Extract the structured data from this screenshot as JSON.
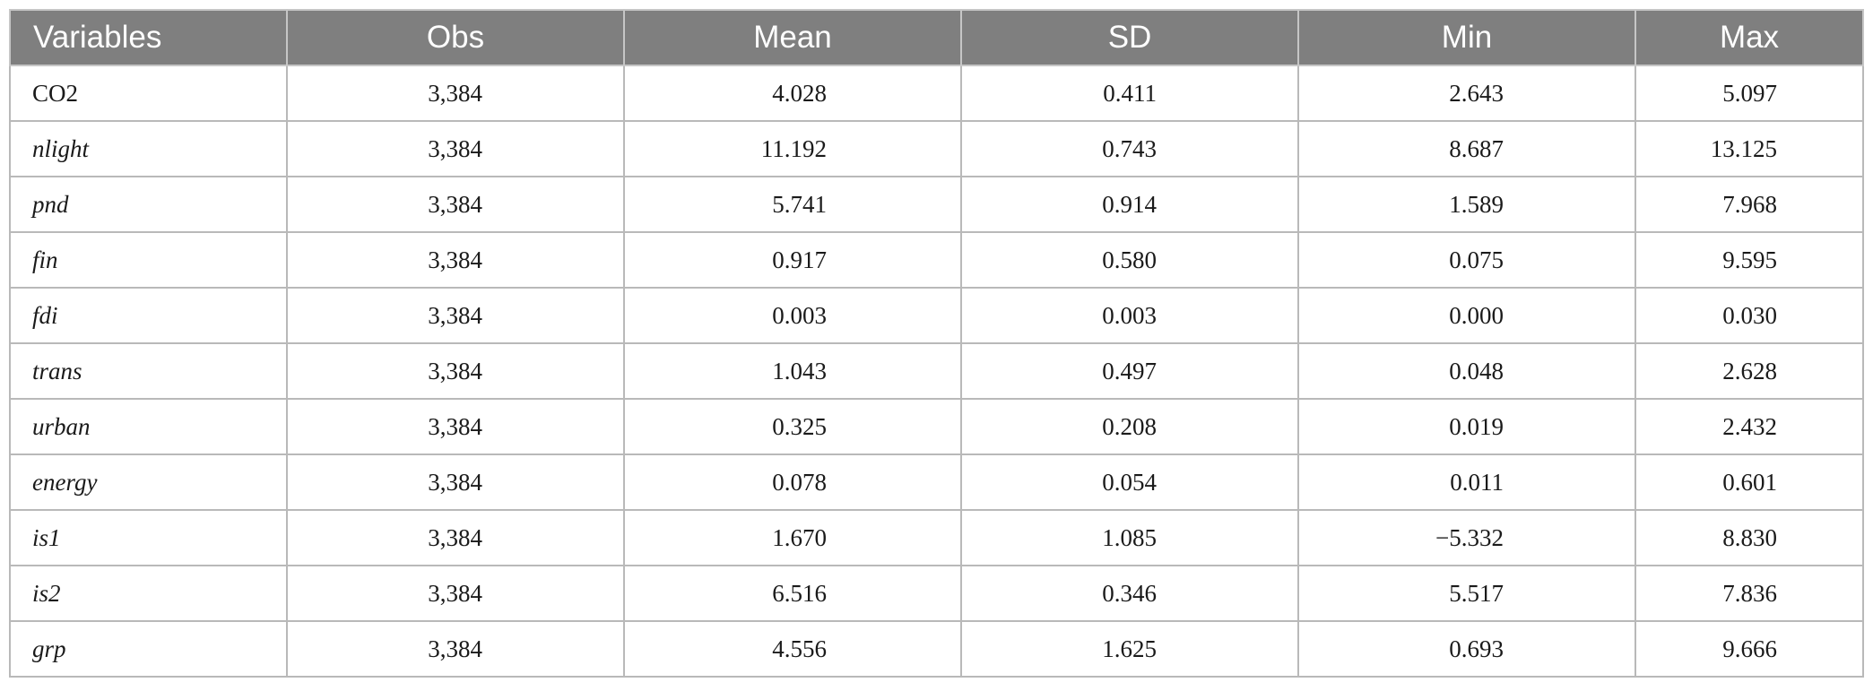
{
  "table": {
    "headers": [
      "Variables",
      "Obs",
      "Mean",
      "SD",
      "Min",
      "Max"
    ],
    "rows": [
      [
        "CO2",
        "3,384",
        "4.028",
        "0.411",
        "2.643",
        "5.097"
      ],
      [
        "nlight",
        "3,384",
        "11.192",
        "0.743",
        "8.687",
        "13.125"
      ],
      [
        "pnd",
        "3,384",
        "5.741",
        "0.914",
        "1.589",
        "7.968"
      ],
      [
        "fin",
        "3,384",
        "0.917",
        "0.580",
        "0.075",
        "9.595"
      ],
      [
        "fdi",
        "3,384",
        "0.003",
        "0.003",
        "0.000",
        "0.030"
      ],
      [
        "trans",
        "3,384",
        "1.043",
        "0.497",
        "0.048",
        "2.628"
      ],
      [
        "urban",
        "3,384",
        "0.325",
        "0.208",
        "0.019",
        "2.432"
      ],
      [
        "energy",
        "3,384",
        "0.078",
        "0.054",
        "0.011",
        "0.601"
      ],
      [
        "is1",
        "3,384",
        "1.670",
        "1.085",
        "−5.332",
        "8.830"
      ],
      [
        "is2",
        "3,384",
        "6.516",
        "0.346",
        "5.517",
        "7.836"
      ],
      [
        "grp",
        "3,384",
        "4.556",
        "1.625",
        "0.693",
        "9.666"
      ]
    ]
  }
}
